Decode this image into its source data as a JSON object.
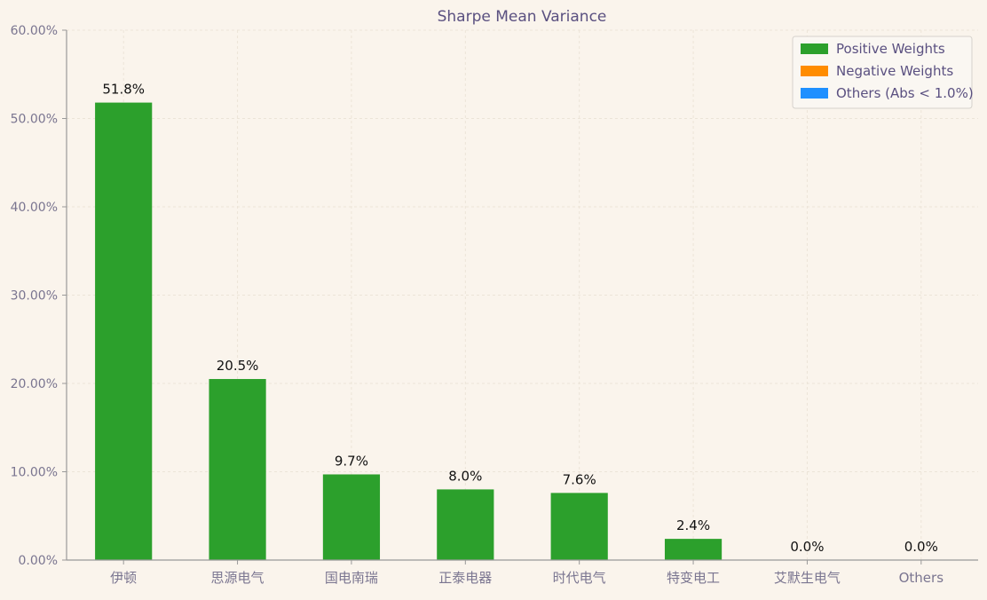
{
  "chart_data": {
    "type": "bar",
    "title": "Sharpe Mean Variance",
    "xlabel": "",
    "ylabel": "",
    "categories": [
      "伊顿",
      "思源电气",
      "国电南瑞",
      "正泰电器",
      "时代电气",
      "特变电工",
      "艾默生电气",
      "Others"
    ],
    "values": [
      51.8,
      20.5,
      9.7,
      8.0,
      7.6,
      2.4,
      0.0,
      0.0
    ],
    "value_labels": [
      "51.8%",
      "20.5%",
      "9.7%",
      "8.0%",
      "7.6%",
      "2.4%",
      "0.0%",
      "0.0%"
    ],
    "ylim": [
      0,
      60
    ],
    "yticks": [
      0,
      10,
      20,
      30,
      40,
      50,
      60
    ],
    "ytick_labels": [
      "0.00%",
      "10.00%",
      "20.00%",
      "30.00%",
      "40.00%",
      "50.00%",
      "60.00%"
    ],
    "grid": true,
    "legend_position": "top-right",
    "legend": [
      {
        "label": "Positive Weights",
        "color": "#2ca02c"
      },
      {
        "label": "Negative Weights",
        "color": "#ff8c00"
      },
      {
        "label": "Others (Abs < 1.0%)",
        "color": "#1e90ff"
      }
    ],
    "bar_color": "#2ca02c",
    "colors": {
      "background": "#faf4ec",
      "title": "#5a5080",
      "tick_text": "#7a7590",
      "axis": "#999999",
      "grid": "#ece4d8",
      "label": "#111111"
    }
  }
}
